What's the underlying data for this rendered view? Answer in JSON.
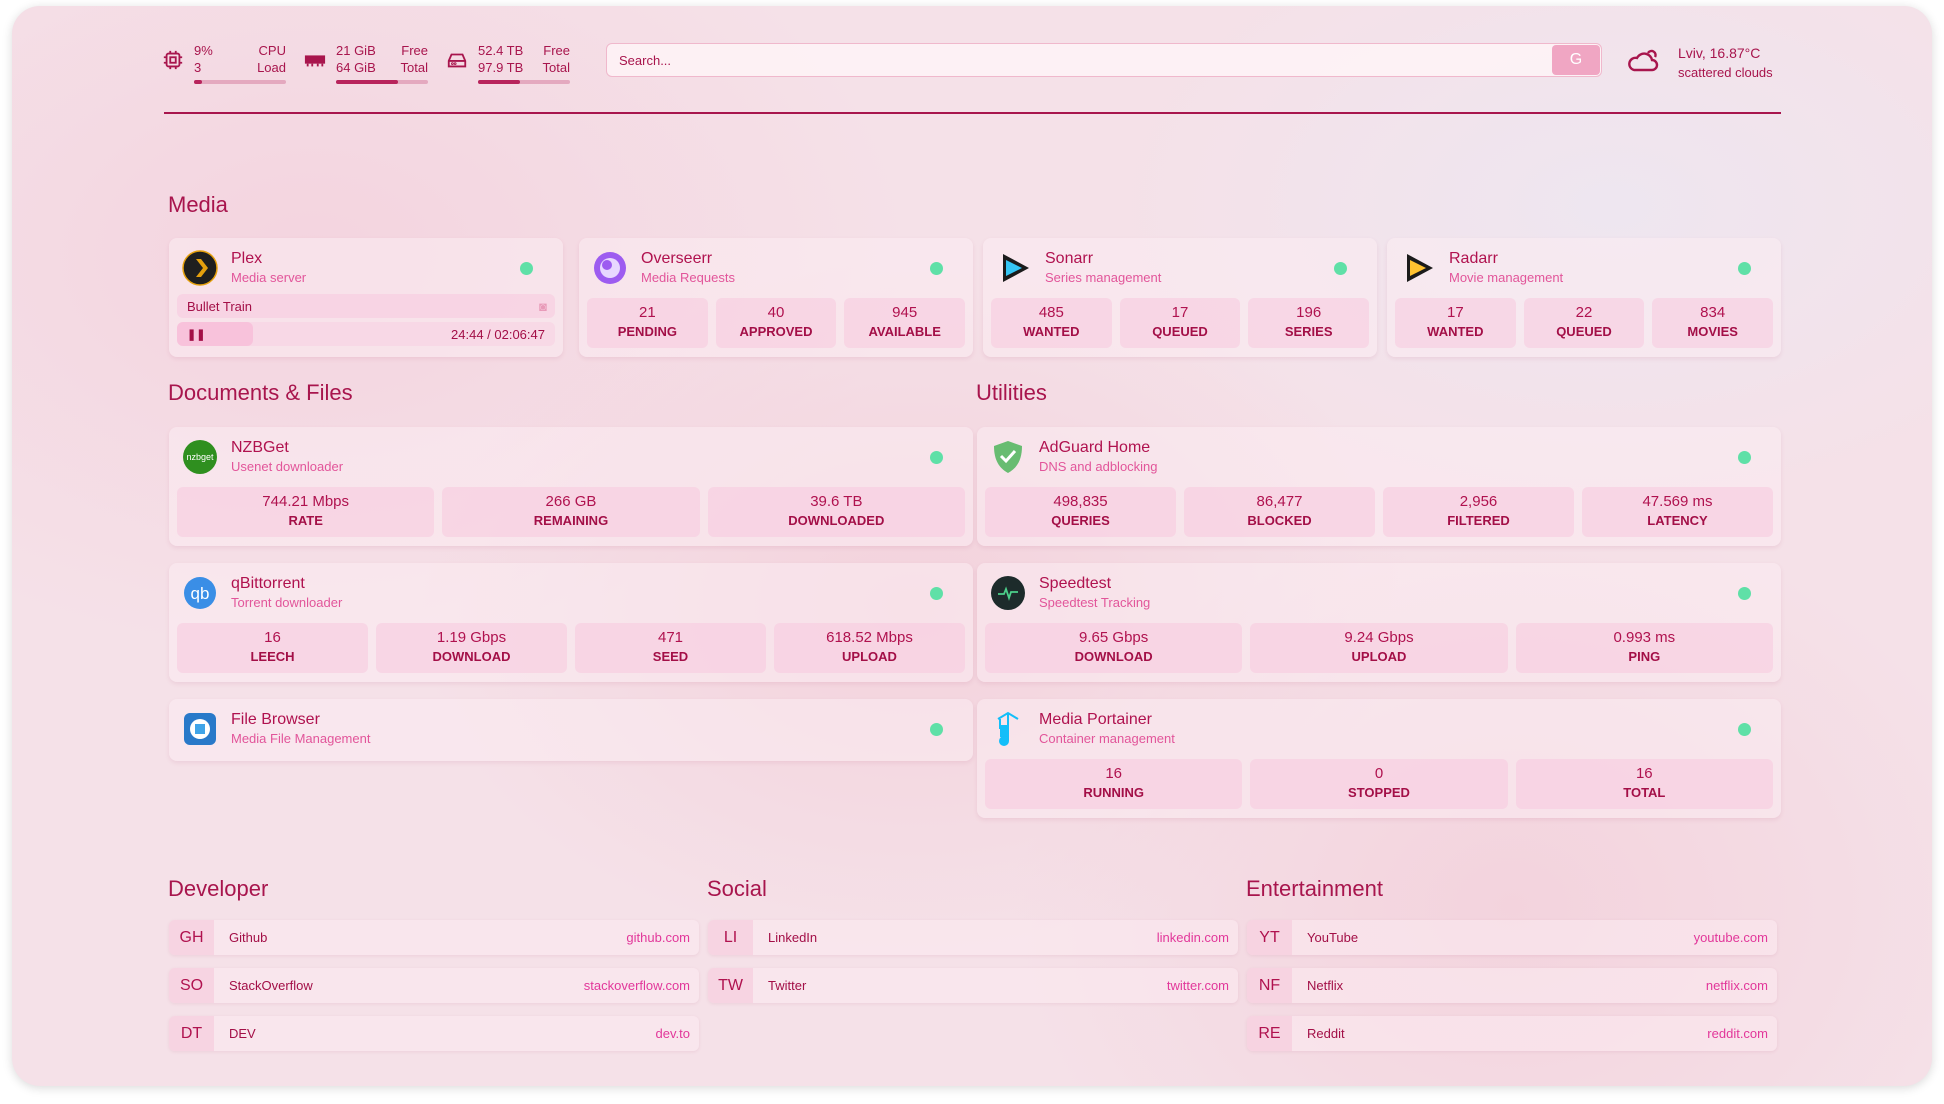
{
  "header": {
    "cpu": {
      "values": [
        "9%",
        "3"
      ],
      "labels": [
        "CPU",
        "Load"
      ],
      "percent": 9
    },
    "memory": {
      "values": [
        "21 GiB",
        "64 GiB"
      ],
      "labels": [
        "Free",
        "Total"
      ],
      "percent": 67
    },
    "disk": {
      "values": [
        "52.4 TB",
        "97.9 TB"
      ],
      "labels": [
        "Free",
        "Total"
      ],
      "percent": 46
    },
    "search": {
      "placeholder": "Search...",
      "button": "G"
    },
    "weather": {
      "location": "Lviv, 16.87°C",
      "condition": "scattered clouds"
    }
  },
  "colors": {
    "accent": "#b0124f",
    "subtitle": "#e2559a",
    "status": "#5fe0a7"
  },
  "sections": {
    "media": "Media",
    "documents": "Documents & Files",
    "utilities": "Utilities",
    "developer": "Developer",
    "social": "Social",
    "entertainment": "Entertainment"
  },
  "plex": {
    "title": "Plex",
    "subtitle": "Media server",
    "now_playing": "Bullet Train",
    "time": "24:44 / 02:06:47",
    "progress": 20
  },
  "cards": [
    {
      "id": "overseerr",
      "title": "Overseerr",
      "subtitle": "Media Requests",
      "icon": "overseerr-icon",
      "stats": [
        [
          "21",
          "PENDING"
        ],
        [
          "40",
          "APPROVED"
        ],
        [
          "945",
          "AVAILABLE"
        ]
      ]
    },
    {
      "id": "sonarr",
      "title": "Sonarr",
      "subtitle": "Series management",
      "icon": "sonarr-icon",
      "stats": [
        [
          "485",
          "WANTED"
        ],
        [
          "17",
          "QUEUED"
        ],
        [
          "196",
          "SERIES"
        ]
      ]
    },
    {
      "id": "radarr",
      "title": "Radarr",
      "subtitle": "Movie management",
      "icon": "radarr-icon",
      "stats": [
        [
          "17",
          "WANTED"
        ],
        [
          "22",
          "QUEUED"
        ],
        [
          "834",
          "MOVIES"
        ]
      ]
    },
    {
      "id": "nzbget",
      "title": "NZBGet",
      "subtitle": "Usenet downloader",
      "icon": "nzbget-icon",
      "stats": [
        [
          "744.21 Mbps",
          "RATE"
        ],
        [
          "266 GB",
          "REMAINING"
        ],
        [
          "39.6 TB",
          "DOWNLOADED"
        ]
      ]
    },
    {
      "id": "qbittorrent",
      "title": "qBittorrent",
      "subtitle": "Torrent downloader",
      "icon": "qbittorrent-icon",
      "stats": [
        [
          "16",
          "LEECH"
        ],
        [
          "1.19 Gbps",
          "DOWNLOAD"
        ],
        [
          "471",
          "SEED"
        ],
        [
          "618.52 Mbps",
          "UPLOAD"
        ]
      ]
    },
    {
      "id": "filebrowser",
      "title": "File Browser",
      "subtitle": "Media File Management",
      "icon": "filebrowser-icon",
      "stats": []
    },
    {
      "id": "adguard",
      "title": "AdGuard Home",
      "subtitle": "DNS and adblocking",
      "icon": "adguard-icon",
      "stats": [
        [
          "498,835",
          "QUERIES"
        ],
        [
          "86,477",
          "BLOCKED"
        ],
        [
          "2,956",
          "FILTERED"
        ],
        [
          "47.569 ms",
          "LATENCY"
        ]
      ]
    },
    {
      "id": "speedtest",
      "title": "Speedtest",
      "subtitle": "Speedtest Tracking",
      "icon": "speedtest-icon",
      "stats": [
        [
          "9.65 Gbps",
          "DOWNLOAD"
        ],
        [
          "9.24 Gbps",
          "UPLOAD"
        ],
        [
          "0.993 ms",
          "PING"
        ]
      ]
    },
    {
      "id": "portainer",
      "title": "Media Portainer",
      "subtitle": "Container management",
      "icon": "portainer-icon",
      "stats": [
        [
          "16",
          "RUNNING"
        ],
        [
          "0",
          "STOPPED"
        ],
        [
          "16",
          "TOTAL"
        ]
      ]
    }
  ],
  "bookmarks": [
    [
      [
        "GH",
        "Github",
        "github.com"
      ],
      [
        "SO",
        "StackOverflow",
        "stackoverflow.com"
      ],
      [
        "DT",
        "DEV",
        "dev.to"
      ]
    ],
    [
      [
        "LI",
        "LinkedIn",
        "linkedin.com"
      ],
      [
        "TW",
        "Twitter",
        "twitter.com"
      ]
    ],
    [
      [
        "YT",
        "YouTube",
        "youtube.com"
      ],
      [
        "NF",
        "Netflix",
        "netflix.com"
      ],
      [
        "RE",
        "Reddit",
        "reddit.com"
      ]
    ]
  ]
}
